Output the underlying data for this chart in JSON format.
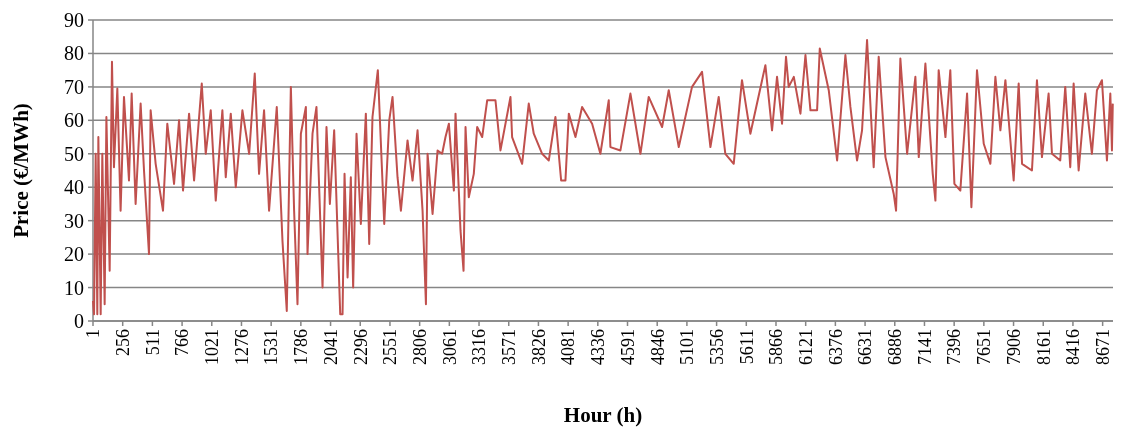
{
  "chart_data": {
    "type": "line",
    "xlabel": "Hour (h)",
    "ylabel": "Price (€/MWh)",
    "xlim": [
      1,
      8760
    ],
    "xticks": [
      1,
      256,
      511,
      766,
      1021,
      1276,
      1531,
      1786,
      2041,
      2296,
      2551,
      2806,
      3061,
      3316,
      3571,
      3826,
      4081,
      4336,
      4591,
      4846,
      5101,
      5356,
      5611,
      5866,
      6121,
      6376,
      6631,
      6886,
      7141,
      7396,
      7651,
      7906,
      8161,
      8416,
      8671
    ],
    "ylim": [
      0,
      90
    ],
    "yticks": [
      0,
      10,
      20,
      30,
      40,
      50,
      60,
      70,
      80,
      90
    ],
    "grid": "y",
    "marker": "none",
    "line_style": "solid",
    "series": [
      {
        "color": "#c0504d",
        "x": [
          1,
          10,
          24,
          38,
          47,
          67,
          81,
          101,
          116,
          144,
          164,
          181,
          210,
          238,
          267,
          310,
          333,
          367,
          410,
          439,
          482,
          496,
          539,
          602,
          639,
          697,
          740,
          774,
          826,
          869,
          935,
          969,
          1012,
          1055,
          1112,
          1141,
          1184,
          1227,
          1284,
          1342,
          1390,
          1427,
          1470,
          1513,
          1579,
          1628,
          1665,
          1700,
          1728,
          1757,
          1786,
          1829,
          1843,
          1886,
          1920,
          1972,
          2006,
          2035,
          2072,
          2124,
          2144,
          2161,
          2187,
          2215,
          2235,
          2264,
          2301,
          2344,
          2373,
          2401,
          2447,
          2502,
          2545,
          2573,
          2616,
          2645,
          2702,
          2745,
          2788,
          2831,
          2860,
          2874,
          2917,
          2960,
          2999,
          3028,
          3057,
          3100,
          3114,
          3157,
          3183,
          3200,
          3228,
          3271,
          3300,
          3343,
          3386,
          3457,
          3500,
          3586,
          3600,
          3686,
          3743,
          3786,
          3858,
          3915,
          3972,
          4021,
          4058,
          4087,
          4144,
          4201,
          4287,
          4358,
          4430,
          4444,
          4530,
          4616,
          4702,
          4773,
          4888,
          4945,
          5031,
          5145,
          5231,
          5303,
          5374,
          5431,
          5503,
          5574,
          5646,
          5775,
          5832,
          5875,
          5918,
          5952,
          5975,
          6019,
          6076,
          6119,
          6162,
          6219,
          6242,
          6319,
          6391,
          6462,
          6505,
          6562,
          6605,
          6648,
          6705,
          6748,
          6806,
          6877,
          6897,
          6934,
          6992,
          7063,
          7092,
          7149,
          7212,
          7235,
          7263,
          7321,
          7363,
          7398,
          7449,
          7507,
          7544,
          7592,
          7650,
          7707,
          7750,
          7793,
          7836,
          7907,
          7950,
          7979,
          8064,
          8107,
          8150,
          8207,
          8236,
          8307,
          8350,
          8393,
          8422,
          8465,
          8522,
          8579,
          8622,
          8665,
          8708,
          8737,
          8751,
          8758
        ],
        "values": [
          6,
          2,
          50,
          2,
          55,
          2,
          50,
          5,
          61,
          15,
          77.5,
          46,
          69.5,
          33,
          67,
          42,
          68,
          35,
          65,
          45,
          20,
          63,
          47,
          33,
          59,
          41,
          60,
          39,
          62,
          42,
          71,
          50,
          63,
          36,
          63,
          43,
          62,
          40,
          63,
          50,
          74,
          44,
          63,
          33,
          64,
          24,
          3,
          70,
          33,
          5,
          56,
          64,
          20,
          56,
          64,
          10,
          58,
          35,
          57,
          2,
          2,
          44,
          13,
          43,
          10,
          56,
          29,
          62,
          23,
          61,
          75,
          29,
          60,
          67,
          43,
          33,
          54,
          42,
          57,
          33,
          5,
          50,
          32,
          51,
          50,
          55,
          59,
          39,
          62,
          27,
          15,
          58,
          37,
          44,
          58,
          55,
          66,
          66,
          51,
          67,
          55,
          47,
          65,
          56,
          50,
          48,
          61,
          42,
          42,
          62,
          55,
          64,
          59,
          50,
          66,
          52,
          51,
          68,
          50,
          67,
          58,
          69,
          52,
          70,
          74.5,
          52,
          67,
          50,
          47,
          72,
          56,
          76.5,
          57,
          73,
          59,
          79,
          70,
          73,
          62,
          79.5,
          63,
          63,
          81.5,
          69,
          48,
          79.5,
          64,
          48,
          57,
          84,
          46,
          79,
          49,
          38,
          33,
          78.5,
          50,
          73,
          49,
          77,
          44,
          36,
          75,
          55,
          75,
          41,
          39,
          68,
          34,
          75,
          53,
          47,
          73,
          57,
          72,
          42,
          71,
          47,
          45,
          72,
          49,
          68,
          50,
          48,
          70,
          46,
          71,
          45,
          68,
          50,
          69,
          72,
          48,
          68,
          51,
          65
        ]
      }
    ]
  }
}
